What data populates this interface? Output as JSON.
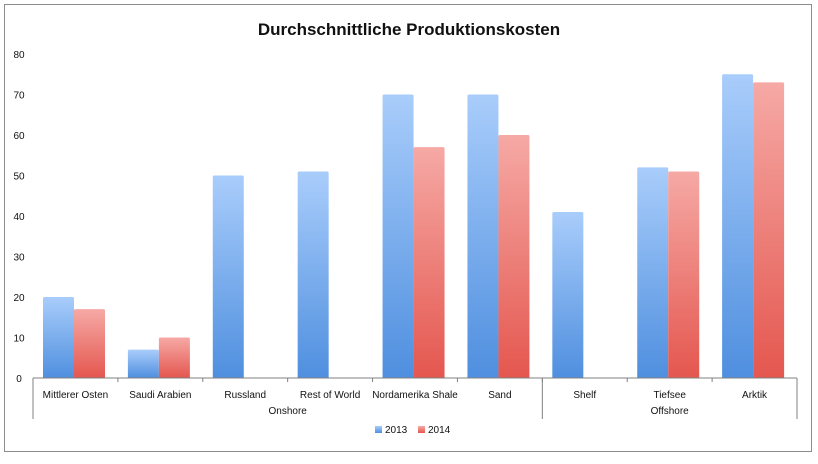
{
  "chart_data": {
    "type": "bar",
    "title": "Durchschnittliche Produktionskosten",
    "xlabel": "",
    "ylabel": "",
    "ylim": [
      0,
      80
    ],
    "yticks": [
      0,
      10,
      20,
      30,
      40,
      50,
      60,
      70,
      80
    ],
    "categories": [
      "Mittlerer Osten",
      "Saudi Arabien",
      "Russland",
      "Rest of World",
      "Nordamerika Shale",
      "Sand",
      "Shelf",
      "Tiefsee",
      "Arktik"
    ],
    "groups": [
      {
        "label": "Onshore",
        "count": 6
      },
      {
        "label": "Offshore",
        "count": 3
      }
    ],
    "series": [
      {
        "name": "2013",
        "color": "#5b9be6",
        "values": [
          20,
          7,
          50,
          51,
          70,
          70,
          41,
          52,
          75
        ]
      },
      {
        "name": "2014",
        "color": "#e9625a",
        "values": [
          17,
          10,
          null,
          null,
          57,
          60,
          null,
          51,
          73
        ]
      }
    ],
    "legend_position": "bottom"
  }
}
